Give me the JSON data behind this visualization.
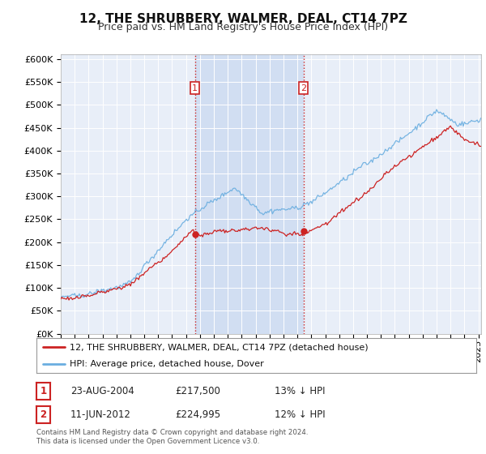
{
  "title": "12, THE SHRUBBERY, WALMER, DEAL, CT14 7PZ",
  "subtitle": "Price paid vs. HM Land Registry's House Price Index (HPI)",
  "yticks": [
    0,
    50000,
    100000,
    150000,
    200000,
    250000,
    300000,
    350000,
    400000,
    450000,
    500000,
    550000,
    600000
  ],
  "ylim": [
    0,
    610000
  ],
  "xlim_start": 1995.0,
  "xlim_end": 2025.2,
  "background_color": "#ffffff",
  "plot_bg_color": "#e8eef8",
  "shade_color": "#c8d8f0",
  "grid_color": "#ffffff",
  "hpi_color": "#6aaee0",
  "price_color": "#cc2222",
  "vline_color": "#cc2222",
  "sale1_date": 2004.64,
  "sale1_price": 217500,
  "sale2_date": 2012.44,
  "sale2_price": 224995,
  "legend_label_price": "12, THE SHRUBBERY, WALMER, DEAL, CT14 7PZ (detached house)",
  "legend_label_hpi": "HPI: Average price, detached house, Dover",
  "footnote": "Contains HM Land Registry data © Crown copyright and database right 2024.\nThis data is licensed under the Open Government Licence v3.0.",
  "title_fontsize": 11,
  "subtitle_fontsize": 9,
  "tick_fontsize": 8
}
